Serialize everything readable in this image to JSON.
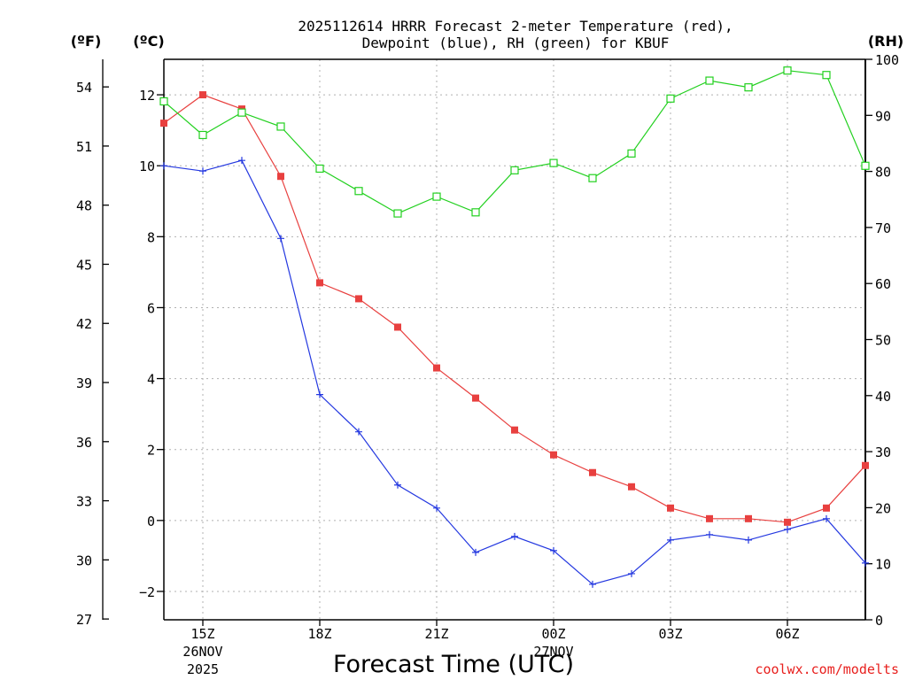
{
  "chart_data": {
    "type": "line",
    "title_line1": "2025112614 HRRR Forecast 2-meter Temperature (red),",
    "title_line2": "Dewpoint (blue), RH (green) for KBUF",
    "xlabel": "Forecast Time (UTC)",
    "credit": "coolwx.com/modelts",
    "units": {
      "fahrenheit": "(ºF)",
      "celsius": "(ºC)",
      "rh": "(RH)"
    },
    "x_hours": [
      14,
      15,
      16,
      17,
      18,
      19,
      20,
      21,
      22,
      23,
      24,
      25,
      26,
      27,
      28,
      29,
      30,
      31,
      32
    ],
    "xlim": [
      14,
      32
    ],
    "x_ticks": [
      {
        "hour": 15,
        "label": "15Z",
        "sub1": "26NOV",
        "sub2": "2025"
      },
      {
        "hour": 18,
        "label": "18Z",
        "sub1": "",
        "sub2": ""
      },
      {
        "hour": 21,
        "label": "21Z",
        "sub1": "",
        "sub2": ""
      },
      {
        "hour": 24,
        "label": "00Z",
        "sub1": "27NOV",
        "sub2": ""
      },
      {
        "hour": 27,
        "label": "03Z",
        "sub1": "",
        "sub2": ""
      },
      {
        "hour": 30,
        "label": "06Z",
        "sub1": "",
        "sub2": ""
      }
    ],
    "celsius_range": [
      -2.8,
      13.0
    ],
    "celsius_ticks": [
      -2,
      0,
      2,
      4,
      6,
      8,
      10,
      12
    ],
    "fahrenheit_ticks": [
      27,
      30,
      33,
      36,
      39,
      42,
      45,
      48,
      51,
      54
    ],
    "rh_range": [
      0,
      100
    ],
    "rh_ticks": [
      0,
      10,
      20,
      30,
      40,
      50,
      60,
      70,
      80,
      90,
      100
    ],
    "series": [
      {
        "name": "Temperature",
        "axis": "celsius",
        "color": "#e8403f",
        "marker": "filled-square",
        "values": [
          11.2,
          12.0,
          11.6,
          9.7,
          6.7,
          6.25,
          5.45,
          4.3,
          3.45,
          2.55,
          1.85,
          1.35,
          0.95,
          0.35,
          0.05,
          0.05,
          -0.05,
          0.35,
          1.55
        ]
      },
      {
        "name": "Dewpoint",
        "axis": "celsius",
        "color": "#2438e0",
        "marker": "plus",
        "values": [
          10.0,
          9.85,
          10.15,
          7.95,
          3.55,
          2.5,
          1.0,
          0.35,
          -0.9,
          -0.45,
          -0.85,
          -1.8,
          -1.5,
          -0.55,
          -0.4,
          -0.55,
          -0.25,
          0.05,
          -1.2
        ]
      },
      {
        "name": "RH",
        "axis": "rh",
        "color": "#22d01f",
        "marker": "open-square",
        "values": [
          92.5,
          86.5,
          90.5,
          88.0,
          80.5,
          76.5,
          72.5,
          75.5,
          72.7,
          80.2,
          81.5,
          78.8,
          83.2,
          93.0,
          96.2,
          95.0,
          98.0,
          97.2,
          81.0
        ]
      }
    ]
  }
}
